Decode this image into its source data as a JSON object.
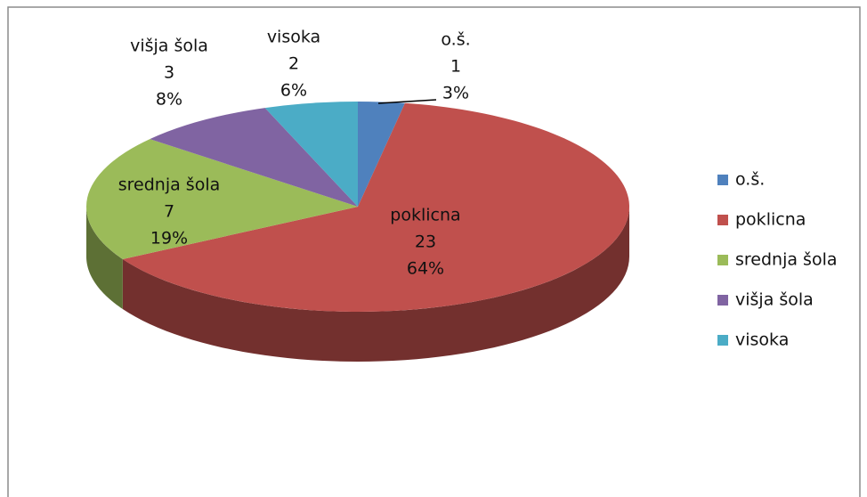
{
  "chart_data": {
    "type": "pie3d",
    "categories": [
      "o.š.",
      "poklicna",
      "srednja šola",
      "višja šola",
      "visoka"
    ],
    "values": [
      1,
      23,
      7,
      3,
      2
    ],
    "percent_labels": [
      "3%",
      "64%",
      "19%",
      "8%",
      "6%"
    ],
    "colors": [
      "#4f81bd",
      "#c0504d",
      "#9bbb59",
      "#8064a2",
      "#4bacc6"
    ],
    "legend": "right"
  }
}
